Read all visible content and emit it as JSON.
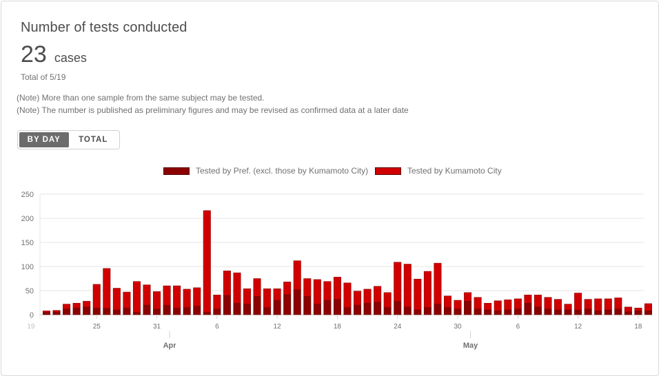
{
  "header": {
    "title": "Number of tests conducted",
    "value": "23",
    "unit": "cases",
    "date": "Total of 5/19"
  },
  "notes": [
    "(Note) More than one sample from the same subject may be tested.",
    "(Note) The number is published as preliminary figures and may be revised as confirmed data at a later date"
  ],
  "toggle": {
    "by_day": "BY DAY",
    "total": "TOTAL"
  },
  "colors": {
    "pref": "#8b0000",
    "city": "#d10000"
  },
  "chart_data": {
    "type": "bar",
    "stacked": true,
    "x_tick_labels": [
      "19",
      "25",
      "31",
      "6",
      "12",
      "18",
      "24",
      "30",
      "6",
      "12",
      "18"
    ],
    "month_labels": [
      "Apr",
      "May"
    ],
    "ylim": [
      0,
      250
    ],
    "y_ticks": [
      "0",
      "50",
      "100",
      "150",
      "200",
      "250"
    ],
    "grid": true,
    "legend_position": "top",
    "categories": [
      "3/20",
      "3/21",
      "3/22",
      "3/23",
      "3/24",
      "3/25",
      "3/26",
      "3/27",
      "3/28",
      "3/29",
      "3/30",
      "3/31",
      "4/1",
      "4/2",
      "4/3",
      "4/4",
      "4/5",
      "4/6",
      "4/7",
      "4/8",
      "4/9",
      "4/10",
      "4/11",
      "4/12",
      "4/13",
      "4/14",
      "4/15",
      "4/16",
      "4/17",
      "4/18",
      "4/19",
      "4/20",
      "4/21",
      "4/22",
      "4/23",
      "4/24",
      "4/25",
      "4/26",
      "4/27",
      "4/28",
      "4/29",
      "4/30",
      "5/1",
      "5/2",
      "5/3",
      "5/4",
      "5/5",
      "5/6",
      "5/7",
      "5/8",
      "5/9",
      "5/10",
      "5/11",
      "5/12",
      "5/13",
      "5/14",
      "5/15",
      "5/16",
      "5/17",
      "5/18",
      "5/19"
    ],
    "series": [
      {
        "name": "Tested by Pref. (excl. those by Kumamoto City)",
        "values": [
          5,
          6,
          12,
          14,
          16,
          14,
          13,
          10,
          14,
          5,
          20,
          12,
          20,
          14,
          15,
          18,
          5,
          12,
          40,
          24,
          22,
          38,
          15,
          30,
          42,
          52,
          38,
          22,
          30,
          32,
          15,
          20,
          24,
          26,
          15,
          28,
          16,
          10,
          15,
          22,
          15,
          12,
          28,
          12,
          10,
          8,
          10,
          12,
          24,
          16,
          12,
          10,
          10,
          10,
          12,
          8,
          10,
          12,
          6,
          8,
          8
        ],
        "color": "#8b0000"
      },
      {
        "name": "Tested by Kumamoto City",
        "values": [
          3,
          3,
          10,
          10,
          12,
          49,
          83,
          45,
          33,
          64,
          42,
          36,
          40,
          46,
          38,
          38,
          211,
          29,
          51,
          63,
          32,
          37,
          39,
          24,
          26,
          60,
          37,
          51,
          39,
          46,
          51,
          29,
          29,
          33,
          31,
          81,
          89,
          64,
          75,
          85,
          24,
          18,
          18,
          24,
          14,
          21,
          21,
          21,
          17,
          25,
          24,
          22,
          12,
          35,
          20,
          25,
          23,
          23,
          10,
          6,
          15
        ]
      }
    ]
  }
}
